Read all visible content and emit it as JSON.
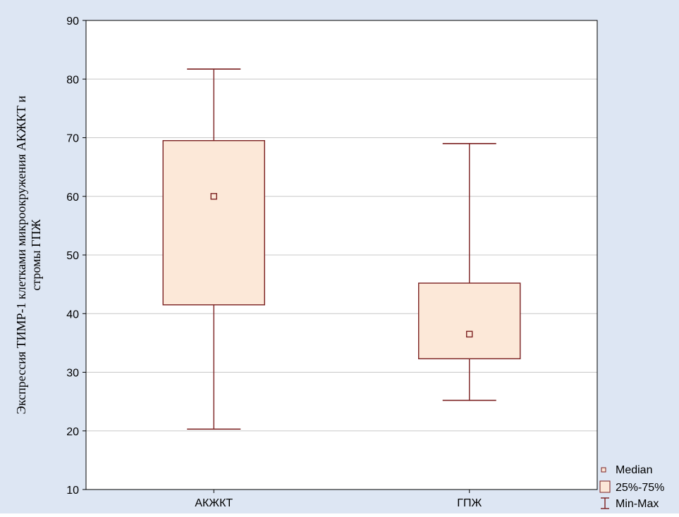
{
  "chart_data": {
    "type": "box",
    "title": "",
    "xlabel": "",
    "ylabel_lines": [
      "Экспрессия ТИМР-1 клетками микроокружения АКЖКТ и",
      "стромы ГПЖ"
    ],
    "categories": [
      "АКЖКТ",
      "ГПЖ"
    ],
    "series": [
      {
        "category": "АКЖКТ",
        "min": 20.3,
        "q1": 41.5,
        "median": 60,
        "q3": 69.5,
        "max": 81.7
      },
      {
        "category": "ГПЖ",
        "min": 25.2,
        "q1": 32.3,
        "median": 36.5,
        "q3": 45.2,
        "max": 69
      }
    ],
    "ylim": [
      10,
      90
    ],
    "yticks": [
      "10",
      "20",
      "30",
      "40",
      "50",
      "60",
      "70",
      "80",
      "90"
    ],
    "grid": true,
    "legend_position": "bottom-right",
    "legend": {
      "median": "Median",
      "box": "25%-75%",
      "whisker": "Min-Max"
    },
    "colors": {
      "outer_background": "#dde6f3",
      "plot_background": "#ffffff",
      "box_fill": "#fce8d8",
      "stroke": "#7a1f1f",
      "grid": "#c8c8c8",
      "axis": "#000000",
      "text": "#000000"
    }
  }
}
